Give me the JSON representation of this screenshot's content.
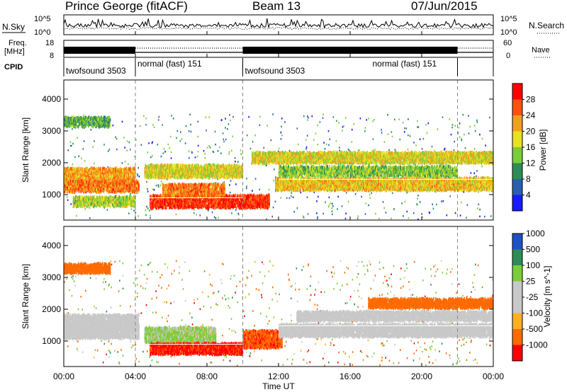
{
  "header": {
    "station": "Prince George (fitACF)",
    "beam": "Beam 13",
    "date": "07/Jun/2015"
  },
  "top_panels": {
    "nsky_label": "N.Sky",
    "nsearch_label": "N.Search",
    "freq_label_1": "Freq.",
    "freq_label_2": "[MHz]",
    "nave_label": "Nave",
    "cpid_label": "CPID",
    "noise_ticks_left": [
      "10^5",
      "10^0"
    ],
    "noise_ticks_right": [
      "10^5",
      "10^0"
    ],
    "freq_ticks": [
      "18",
      "8"
    ],
    "nave_ticks": [
      "60",
      "0"
    ]
  },
  "cpid_segments": [
    {
      "label": "twofsound 3503",
      "start_hr": 0,
      "end_hr": 4
    },
    {
      "label": "normal (fast) 151",
      "start_hr": 4,
      "end_hr": 10
    },
    {
      "label": "twofsound 3503",
      "start_hr": 10,
      "end_hr": 22
    },
    {
      "label": "normal (fast) 151",
      "start_hr": 22,
      "end_hr": 24
    }
  ],
  "colors": {
    "power_scale": [
      "#1a1aff",
      "#2a5fb0",
      "#2e8b57",
      "#7ccc3a",
      "#e8e020",
      "#f0a020",
      "#ff5010",
      "#ff0000"
    ],
    "velocity_scale": [
      "#ff0000",
      "#ff6a00",
      "#ffb020",
      "#c8c8c8",
      "#c8c8c8",
      "#7ccc3a",
      "#2e8b57",
      "#2050c8"
    ],
    "ground_scatter": "#c8c8c8"
  },
  "chart_data": [
    {
      "type": "heatmap",
      "panel": "power",
      "ylabel": "Slant Range [km]",
      "yticks": [
        "1000",
        "2000",
        "3000",
        "4000"
      ],
      "ylim": [
        200,
        4600
      ],
      "xlim": [
        0,
        24
      ],
      "colorbar_label": "Power [dB]",
      "colorbar_ticks": [
        "4",
        "8",
        "12",
        "16",
        "20",
        "24",
        "28"
      ],
      "colorbar_range": [
        0,
        32
      ],
      "bands": [
        {
          "t0": 0.0,
          "t1": 2.6,
          "r0": 3200,
          "r1": 3500,
          "value": 12
        },
        {
          "t0": 0.0,
          "t1": 4.0,
          "r0": 1500,
          "r1": 1900,
          "value": 22
        },
        {
          "t0": 0.0,
          "t1": 4.2,
          "r0": 1150,
          "r1": 1500,
          "value": 24
        },
        {
          "t0": 0.5,
          "t1": 4.0,
          "r0": 700,
          "r1": 1000,
          "value": 16
        },
        {
          "t0": 4.5,
          "t1": 10.0,
          "r0": 1600,
          "r1": 2000,
          "value": 18
        },
        {
          "t0": 4.8,
          "t1": 11.5,
          "r0": 650,
          "r1": 1050,
          "value": 28
        },
        {
          "t0": 5.5,
          "t1": 9.0,
          "r0": 1000,
          "r1": 1400,
          "value": 24
        },
        {
          "t0": 10.5,
          "t1": 24.0,
          "r0": 2050,
          "r1": 2400,
          "value": 18
        },
        {
          "t0": 11.8,
          "t1": 24.0,
          "r0": 1200,
          "r1": 1600,
          "value": 20
        },
        {
          "t0": 12.0,
          "t1": 22.0,
          "r0": 1650,
          "r1": 1950,
          "value": 14
        }
      ]
    },
    {
      "type": "heatmap",
      "panel": "velocity",
      "ylabel": "Slant Range [km]",
      "yticks": [
        "1000",
        "2000",
        "3000",
        "4000"
      ],
      "ylim": [
        200,
        4600
      ],
      "xlim": [
        0,
        24
      ],
      "xlabel": "Time UT",
      "xticks": [
        "00:00",
        "04:00",
        "08:00",
        "12:00",
        "16:00",
        "20:00",
        "00:00"
      ],
      "colorbar_label": "Velocity [m s^-1]",
      "colorbar_ticks": [
        "-1000",
        "-500",
        "-100",
        "-25",
        "25",
        "100",
        "500",
        "1000"
      ],
      "bands": [
        {
          "t0": 0.0,
          "t1": 2.6,
          "r0": 3200,
          "r1": 3500,
          "value": -300
        },
        {
          "t0": 0.0,
          "t1": 4.2,
          "r0": 1150,
          "r1": 1900,
          "value": 0
        },
        {
          "t0": 4.5,
          "t1": 8.5,
          "r0": 1000,
          "r1": 1500,
          "value": 150
        },
        {
          "t0": 4.8,
          "t1": 10.0,
          "r0": 650,
          "r1": 1000,
          "value": -600
        },
        {
          "t0": 10.0,
          "t1": 12.2,
          "r0": 850,
          "r1": 1400,
          "value": -400
        },
        {
          "t0": 12.0,
          "t1": 24.0,
          "r0": 1200,
          "r1": 1600,
          "value": 0
        },
        {
          "t0": 13.0,
          "t1": 24.0,
          "r0": 1700,
          "r1": 2000,
          "value": 0
        },
        {
          "t0": 17.0,
          "t1": 24.0,
          "r0": 2100,
          "r1": 2400,
          "value": -300
        }
      ]
    }
  ]
}
